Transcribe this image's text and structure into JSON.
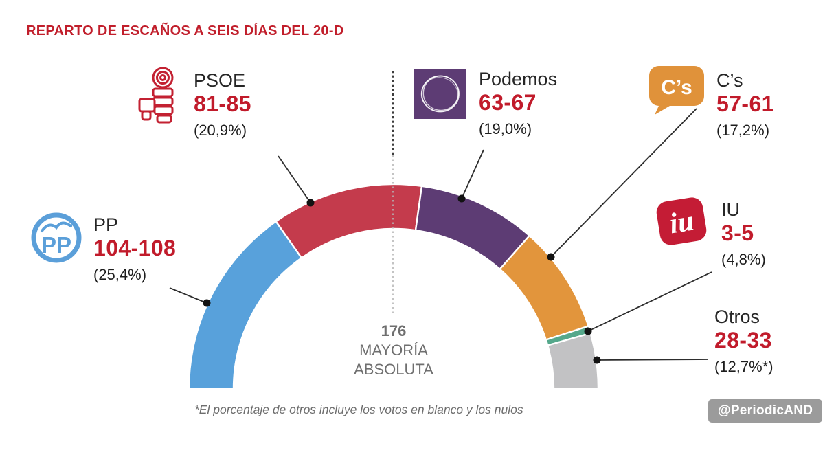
{
  "title": "REPARTO DE ESCAÑOS A SEIS DÍAS DEL 20-D",
  "chart_data": {
    "type": "pie",
    "variant": "semi-donut-hemicycle",
    "title": "REPARTO DE ESCAÑOS A SEIS DÍAS DEL 20-D",
    "legend_position": "around-arc",
    "grid": false,
    "majority_threshold": {
      "value": "176",
      "line1": "MAYORÍA",
      "line2": "ABSOLUTA"
    },
    "series": [
      {
        "name": "PP",
        "seats_label": "104-108",
        "seats_min": 104,
        "seats_max": 108,
        "seats_mid": 106,
        "pct_label": "(25,4%)",
        "pct": 25.4,
        "color": "#58A1DB",
        "icon_color": "#5B9FD9",
        "icon_text": "PP"
      },
      {
        "name": "PSOE",
        "seats_label": "81-85",
        "seats_min": 81,
        "seats_max": 85,
        "seats_mid": 83,
        "pct_label": "(20,9%)",
        "pct": 20.9,
        "color": "#C43B4C",
        "icon_color": "#C32132"
      },
      {
        "name": "Podemos",
        "seats_label": "63-67",
        "seats_min": 63,
        "seats_max": 67,
        "seats_mid": 65,
        "pct_label": "(19,0%)",
        "pct": 19.0,
        "color": "#5D3C74",
        "icon_color": "#5D3C74"
      },
      {
        "name": "C’s",
        "seats_label": "57-61",
        "seats_min": 57,
        "seats_max": 61,
        "seats_mid": 59,
        "pct_label": "(17,2%)",
        "pct": 17.2,
        "color": "#E2953C",
        "icon_color": "#E0923A",
        "icon_text": "C’s"
      },
      {
        "name": "IU",
        "seats_label": "3-5",
        "seats_min": 3,
        "seats_max": 5,
        "seats_mid": 4,
        "pct_label": "(4,8%)",
        "pct": 4.8,
        "color": "#55A88B",
        "icon_color": "#C41C35",
        "icon_text": "iu"
      },
      {
        "name": "Otros",
        "seats_label": "28-33",
        "seats_min": 28,
        "seats_max": 33,
        "seats_mid": 30.5,
        "pct_label": "(12,7%*)",
        "pct": 12.7,
        "color": "#C2C2C4"
      }
    ]
  },
  "footnote": "*El porcentaje de otros incluye los votos en blanco y los nulos",
  "credit": "@PeriodicAND",
  "colors": {
    "title_red": "#C11E2B",
    "number_red": "#C11B2B",
    "text_dark": "#262626",
    "muted_gray": "#6F6F6F",
    "badge_bg": "#9B9B9B",
    "badge_text": "#FFFFFF",
    "background": "#FFFFFF"
  }
}
